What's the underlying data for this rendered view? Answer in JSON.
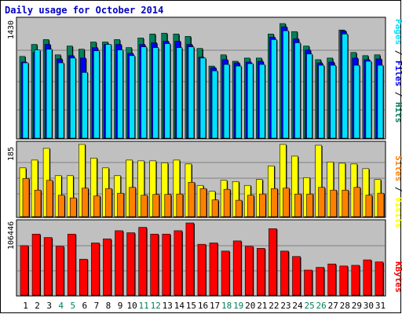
{
  "title": "Daily usage for October 2014",
  "colors": {
    "background": "#C0C0C0",
    "title": "#0000C0",
    "hits": "#00805C",
    "files": "#0000FF",
    "pages": "#00E0FF",
    "visits": "#FFFF00",
    "sites": "#FF8000",
    "kbytes": "#FF0000",
    "weekend_label": "#00805C",
    "weekday_label": "#000000"
  },
  "chart_data": [
    {
      "type": "bar",
      "title": "Daily usage for October 2014",
      "categories": [
        "1",
        "2",
        "3",
        "4",
        "5",
        "6",
        "7",
        "8",
        "9",
        "10",
        "11",
        "12",
        "13",
        "14",
        "15",
        "16",
        "17",
        "18",
        "19",
        "20",
        "21",
        "22",
        "23",
        "24",
        "25",
        "26",
        "27",
        "28",
        "29",
        "30",
        "31"
      ],
      "weekend_days": [
        "4",
        "5",
        "11",
        "12",
        "18",
        "19",
        "25",
        "26"
      ],
      "ymax_label": "1430",
      "ylim": [
        0,
        1430
      ],
      "ylabel": [
        "Pages",
        "Files",
        "Hits"
      ],
      "series": [
        {
          "name": "Hits",
          "color": "#00805C",
          "values": [
            1020,
            1170,
            1230,
            1040,
            1150,
            1110,
            1200,
            1200,
            1230,
            1130,
            1250,
            1300,
            1310,
            1300,
            1270,
            1120,
            900,
            1040,
            960,
            1000,
            1000,
            1300,
            1430,
            1330,
            1150,
            980,
            1000,
            1350,
            1070,
            1030,
            1040
          ]
        },
        {
          "name": "Files",
          "color": "#0000FF",
          "values": [
            950,
            1070,
            1170,
            990,
            1030,
            1000,
            1130,
            1170,
            1170,
            1060,
            1170,
            1190,
            1210,
            1210,
            1170,
            1010,
            880,
            980,
            940,
            950,
            960,
            1260,
            1390,
            1240,
            1100,
            940,
            950,
            1340,
            1000,
            980,
            990
          ]
        },
        {
          "name": "Pages",
          "color": "#00E0FF",
          "values": [
            940,
            1100,
            1110,
            940,
            1000,
            820,
            1090,
            1170,
            1100,
            1030,
            1140,
            1130,
            1180,
            1130,
            1140,
            1000,
            840,
            920,
            900,
            930,
            920,
            1230,
            1340,
            1190,
            1050,
            910,
            910,
            1300,
            910,
            960,
            910
          ]
        }
      ]
    },
    {
      "type": "bar",
      "categories": [
        "1",
        "2",
        "3",
        "4",
        "5",
        "6",
        "7",
        "8",
        "9",
        "10",
        "11",
        "12",
        "13",
        "14",
        "15",
        "16",
        "17",
        "18",
        "19",
        "20",
        "21",
        "22",
        "23",
        "24",
        "25",
        "26",
        "27",
        "28",
        "29",
        "30",
        "31"
      ],
      "ymax_label": "185",
      "ylim": [
        0,
        185
      ],
      "ylabel": [
        "Sites",
        "Visits"
      ],
      "series": [
        {
          "name": "Visits",
          "color": "#FFFF00",
          "values": [
            125,
            145,
            175,
            105,
            105,
            185,
            150,
            125,
            105,
            145,
            143,
            143,
            138,
            145,
            135,
            80,
            65,
            93,
            90,
            80,
            95,
            130,
            185,
            155,
            100,
            183,
            140,
            137,
            135,
            123,
            95
          ]
        },
        {
          "name": "Sites",
          "color": "#FF8000",
          "values": [
            98,
            68,
            93,
            55,
            48,
            73,
            53,
            72,
            60,
            75,
            55,
            57,
            57,
            58,
            88,
            72,
            43,
            70,
            42,
            55,
            58,
            72,
            73,
            58,
            58,
            75,
            68,
            68,
            75,
            55,
            60
          ]
        }
      ]
    },
    {
      "type": "bar",
      "categories": [
        "1",
        "2",
        "3",
        "4",
        "5",
        "6",
        "7",
        "8",
        "9",
        "10",
        "11",
        "12",
        "13",
        "14",
        "15",
        "16",
        "17",
        "18",
        "19",
        "20",
        "21",
        "22",
        "23",
        "24",
        "25",
        "26",
        "27",
        "28",
        "29",
        "30",
        "31"
      ],
      "ymax_label": "106446",
      "ylim": [
        0,
        106446
      ],
      "ylabel": "KBytes",
      "series": [
        {
          "name": "KBytes",
          "color": "#FF0000",
          "values": [
            73000,
            90000,
            85000,
            72000,
            90000,
            53000,
            77000,
            83000,
            95000,
            92000,
            100000,
            90000,
            90000,
            95000,
            106446,
            75000,
            77000,
            65000,
            80000,
            72000,
            69000,
            98000,
            65000,
            57000,
            37000,
            41000,
            46000,
            43000,
            44000,
            52000,
            49000
          ]
        }
      ]
    }
  ]
}
